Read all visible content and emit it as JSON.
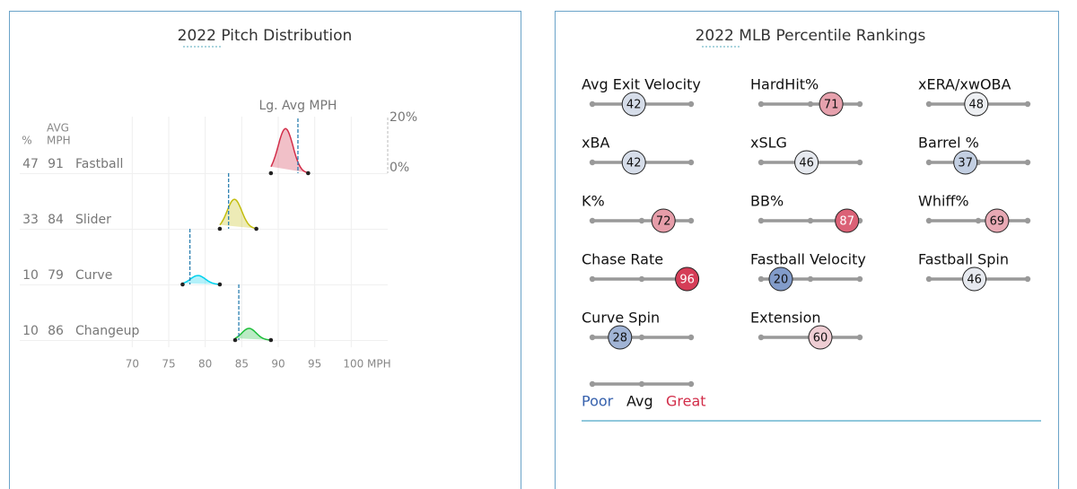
{
  "chart_data": [
    {
      "type": "ridgeline",
      "title": "2022 Pitch Distribution",
      "columns": [
        "%",
        "AVG",
        "MPH"
      ],
      "reference_label": "Lg. Avg MPH",
      "xlim": [
        67.5,
        105
      ],
      "xticks": [
        70,
        75,
        80,
        85,
        90,
        95,
        {
          "value": 100,
          "label": "100 MPH"
        }
      ],
      "density_lim": [
        0,
        20
      ],
      "density_ticks": [
        {
          "value": 20,
          "label": "20%"
        },
        {
          "value": 0,
          "label": "0%"
        }
      ],
      "grid": true,
      "series": [
        {
          "name": "Fastball",
          "color": "#d22d49",
          "share": 47,
          "mph": 91,
          "league_mph": 92.7,
          "range": [
            89,
            94.1
          ],
          "peak": 16
        },
        {
          "name": "Slider",
          "color": "#c3bd0e",
          "share": 33,
          "mph": 84,
          "league_mph": 83.2,
          "range": [
            82,
            87
          ],
          "peak": 10.6
        },
        {
          "name": "Curve",
          "color": "#00d1ed",
          "share": 10,
          "mph": 79,
          "league_mph": 77.9,
          "range": [
            76.9,
            82
          ],
          "peak": 3.2
        },
        {
          "name": "Changeup",
          "color": "#1dbe3a",
          "share": 10,
          "mph": 86,
          "league_mph": 84.6,
          "range": [
            84.1,
            89
          ],
          "peak": 4.2
        }
      ]
    },
    {
      "type": "percentile",
      "title": "2022 MLB Percentile Rankings",
      "xlim": [
        0,
        100
      ],
      "legend": [
        "Poor",
        "Avg",
        "Great"
      ],
      "colors": [
        "#3661ad",
        "#f5f5f5",
        "#d22d49"
      ],
      "metrics": [
        {
          "name": "Avg Exit Velocity",
          "value": 42
        },
        {
          "name": "HardHit%",
          "value": 71
        },
        {
          "name": "xERA/xwOBA",
          "value": 48
        },
        {
          "name": "xBA",
          "value": 42
        },
        {
          "name": "xSLG",
          "value": 46
        },
        {
          "name": "Barrel %",
          "value": 37
        },
        {
          "name": "K%",
          "value": 72
        },
        {
          "name": "BB%",
          "value": 87
        },
        {
          "name": "Whiff%",
          "value": 69
        },
        {
          "name": "Chase Rate",
          "value": 96
        },
        {
          "name": "Fastball Velocity",
          "value": 20
        },
        {
          "name": "Fastball Spin",
          "value": 46
        },
        {
          "name": "Curve Spin",
          "value": 28
        },
        {
          "name": "Extension",
          "value": 60
        }
      ]
    }
  ]
}
